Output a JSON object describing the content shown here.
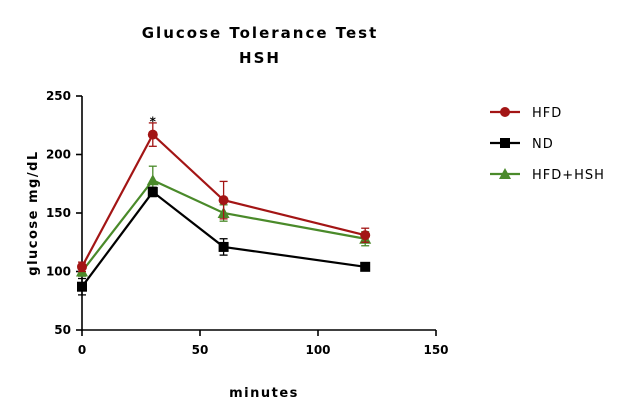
{
  "chart_data": {
    "type": "line",
    "title": "Glucose Tolerance Test",
    "subtitle": "HSH",
    "xlabel": "minutes",
    "ylabel": "glucose mg/dL",
    "xlim": [
      0,
      150
    ],
    "ylim": [
      50,
      250
    ],
    "xticks": [
      0,
      50,
      100,
      150
    ],
    "yticks": [
      50,
      100,
      150,
      200,
      250
    ],
    "grid": false,
    "legend_position": "top-right",
    "x": [
      0,
      30,
      60,
      120
    ],
    "series": [
      {
        "name": "HFD",
        "color": "#a31515",
        "marker": "circle",
        "values": [
          104,
          217,
          161,
          131
        ],
        "errors": [
          4,
          10,
          16,
          6
        ]
      },
      {
        "name": "ND",
        "color": "#000000",
        "marker": "square",
        "values": [
          87,
          168,
          121,
          104
        ],
        "errors": [
          7,
          4,
          7,
          2
        ]
      },
      {
        "name": "HFD+HSH",
        "color": "#4a8a2a",
        "marker": "triangle",
        "values": [
          100,
          178,
          150,
          128
        ],
        "errors": [
          4,
          12,
          7,
          6
        ]
      }
    ],
    "annotations": [
      {
        "text": "*",
        "x": 30,
        "y": 228
      }
    ]
  }
}
